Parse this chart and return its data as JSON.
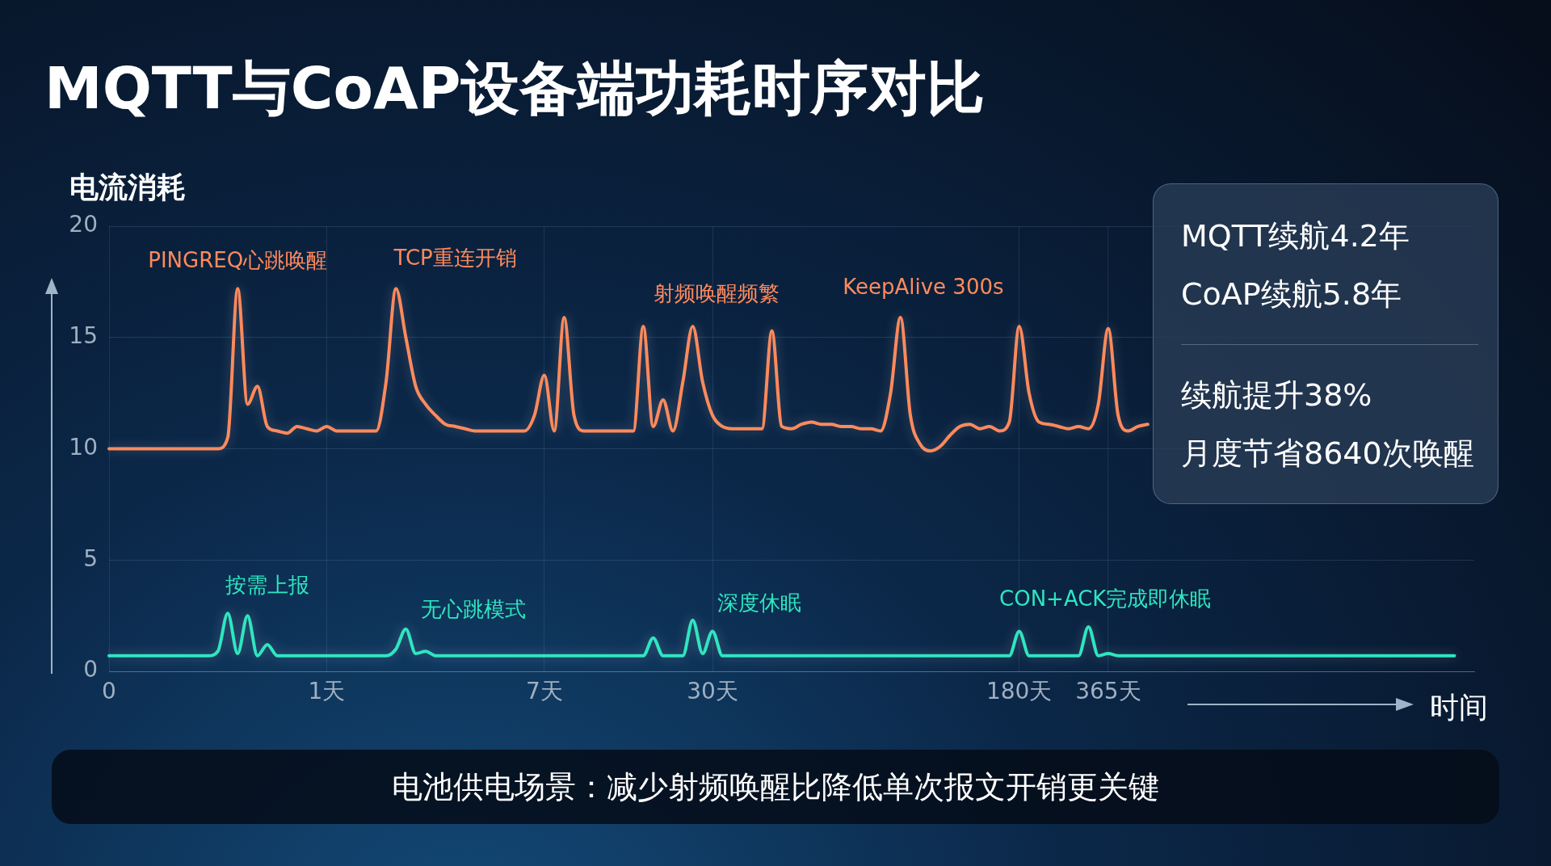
{
  "chart_data": {
    "type": "line",
    "title": "MQTT与CoAP设备端功耗时序对比",
    "xlabel": "时间",
    "ylabel": "电流消耗",
    "categories": [
      "0",
      null,
      null,
      null,
      null,
      null,
      null,
      null,
      null,
      null,
      null,
      null,
      null,
      null,
      null,
      null,
      null,
      null,
      null,
      null,
      null,
      null,
      "1天",
      null,
      null,
      null,
      null,
      null,
      null,
      null,
      null,
      null,
      null,
      null,
      null,
      null,
      null,
      null,
      null,
      null,
      null,
      null,
      null,
      null,
      "7天",
      null,
      null,
      null,
      null,
      null,
      null,
      null,
      null,
      null,
      null,
      null,
      null,
      null,
      null,
      null,
      null,
      "30天",
      null,
      null,
      null,
      null,
      null,
      null,
      null,
      null,
      null,
      null,
      null,
      null,
      null,
      null,
      null,
      null,
      null,
      null,
      null,
      null,
      null,
      null,
      null,
      null,
      null,
      null,
      null,
      null,
      null,
      null,
      "180天",
      null,
      null,
      null,
      null,
      null,
      null,
      null,
      null,
      "365天",
      null,
      null,
      null,
      null,
      null,
      null,
      null,
      null,
      null,
      null,
      null,
      null,
      null,
      null,
      null,
      null,
      null,
      null,
      null,
      null,
      null,
      null,
      null,
      null,
      null,
      null,
      null,
      null,
      null,
      null,
      null,
      null,
      null,
      null,
      null,
      null,
      null
    ],
    "ylim": [
      0,
      20
    ],
    "yticks": [
      0,
      5,
      10,
      15,
      20
    ],
    "grid": true,
    "marker": "none",
    "line_style": "solid",
    "series": [
      {
        "color": "#ff8a5c",
        "values": [
          10,
          10,
          10,
          10,
          10,
          10,
          10,
          10,
          10,
          10,
          10,
          10,
          10.5,
          17.2,
          12.0,
          12.8,
          11.0,
          10.8,
          10.7,
          11.0,
          10.9,
          10.8,
          11.0,
          10.8,
          10.8,
          10.8,
          10.8,
          10.8,
          13.0,
          17.2,
          15.0,
          12.8,
          12.0,
          11.5,
          11.1,
          11.0,
          10.9,
          10.8,
          10.8,
          10.8,
          10.8,
          10.8,
          10.8,
          11.5,
          13.3,
          10.8,
          15.9,
          11.5,
          10.8,
          10.8,
          10.8,
          10.8,
          10.8,
          10.8,
          15.5,
          11.0,
          12.2,
          10.8,
          13.0,
          15.5,
          13.0,
          11.5,
          11.0,
          10.9,
          10.9,
          10.9,
          10.9,
          15.3,
          11.0,
          10.9,
          11.1,
          11.2,
          11.1,
          11.1,
          11.0,
          11.0,
          10.9,
          10.9,
          10.8,
          12.5,
          15.9,
          11.5,
          10.2,
          9.9,
          10.1,
          10.6,
          11.0,
          11.1,
          10.9,
          11.0,
          10.8,
          11.2,
          15.5,
          12.5,
          11.2,
          11.1,
          11.0,
          10.9,
          11.0,
          10.9,
          12.0,
          15.4,
          11.5,
          10.8,
          11.0,
          11.1,
          null,
          null,
          null,
          null,
          null,
          null,
          null,
          null,
          null,
          null,
          null,
          null,
          null,
          null,
          null,
          null,
          null,
          null,
          null,
          null,
          null,
          null,
          null,
          null,
          null,
          null,
          null,
          null,
          null,
          null,
          null,
          null,
          null
        ]
      },
      {
        "color": "#2ee6c0",
        "values": [
          0.7,
          0.7,
          0.7,
          0.7,
          0.7,
          0.7,
          0.7,
          0.7,
          0.7,
          0.7,
          0.7,
          0.9,
          2.6,
          0.8,
          2.5,
          0.7,
          1.2,
          0.7,
          0.7,
          0.7,
          0.7,
          0.7,
          0.7,
          0.7,
          0.7,
          0.7,
          0.7,
          0.7,
          0.7,
          1.0,
          1.9,
          0.8,
          0.9,
          0.7,
          0.7,
          0.7,
          0.7,
          0.7,
          0.7,
          0.7,
          0.7,
          0.7,
          0.7,
          0.7,
          0.7,
          0.7,
          0.7,
          0.7,
          0.7,
          0.7,
          0.7,
          0.7,
          0.7,
          0.7,
          0.7,
          1.5,
          0.7,
          0.7,
          0.7,
          2.3,
          0.8,
          1.8,
          0.7,
          0.7,
          0.7,
          0.7,
          0.7,
          0.7,
          0.7,
          0.7,
          0.7,
          0.7,
          0.7,
          0.7,
          0.7,
          0.7,
          0.7,
          0.7,
          0.7,
          0.7,
          0.7,
          0.7,
          0.7,
          0.7,
          0.7,
          0.7,
          0.7,
          0.7,
          0.7,
          0.7,
          0.7,
          0.7,
          1.8,
          0.7,
          0.7,
          0.7,
          0.7,
          0.7,
          0.7,
          2.0,
          0.7,
          0.8,
          0.7,
          0.7,
          0.7,
          0.7,
          0.7,
          0.7,
          0.7,
          0.7,
          0.7,
          0.7,
          0.7,
          0.7,
          0.7,
          0.7,
          0.7,
          0.7,
          0.7,
          0.7,
          0.7,
          0.7,
          0.7,
          0.7,
          0.7,
          0.7,
          0.7,
          0.7,
          0.7,
          0.7,
          0.7,
          0.7,
          0.7,
          0.7,
          0.7,
          0.7,
          0.7,
          null,
          null
        ]
      }
    ],
    "annotations": [
      "PINGREQ心跳唤醒",
      "TCP重连开销",
      "射频唤醒频繁",
      "KeepAlive 300s",
      "按需上报",
      "无心跳模式",
      "深度休眠",
      "CON+ACK完成即休眠",
      "MQTT续航4.2年",
      "CoAP续航5.8年",
      "续航提升38%",
      "月度节省8640次唤醒",
      "电池供电场景：减少射频唤醒比降低单次报文开销更关键"
    ]
  }
}
